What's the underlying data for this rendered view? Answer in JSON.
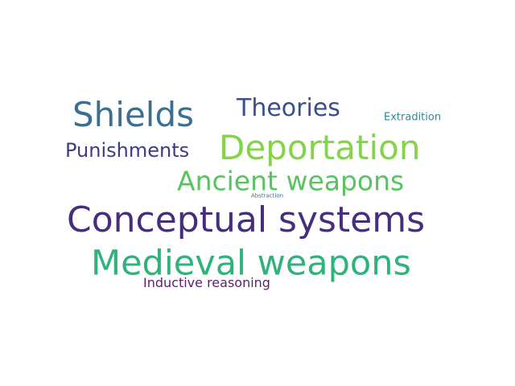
{
  "word_cloud": {
    "words": [
      {
        "text": "Shields",
        "color": "#3b6e8f"
      },
      {
        "text": "Theories",
        "color": "#3b4f8a"
      },
      {
        "text": "Extradition",
        "color": "#2e8a9a"
      },
      {
        "text": "Punishments",
        "color": "#3f3b84"
      },
      {
        "text": "Deportation",
        "color": "#84d44b"
      },
      {
        "text": "Ancient weapons",
        "color": "#57c45f"
      },
      {
        "text": "Abstraction",
        "color": "#3b6e8f"
      },
      {
        "text": "Conceptual systems",
        "color": "#472e7c"
      },
      {
        "text": "Medieval weapons",
        "color": "#2fb37a"
      },
      {
        "text": "Inductive reasoning",
        "color": "#5c1f6b"
      }
    ]
  }
}
